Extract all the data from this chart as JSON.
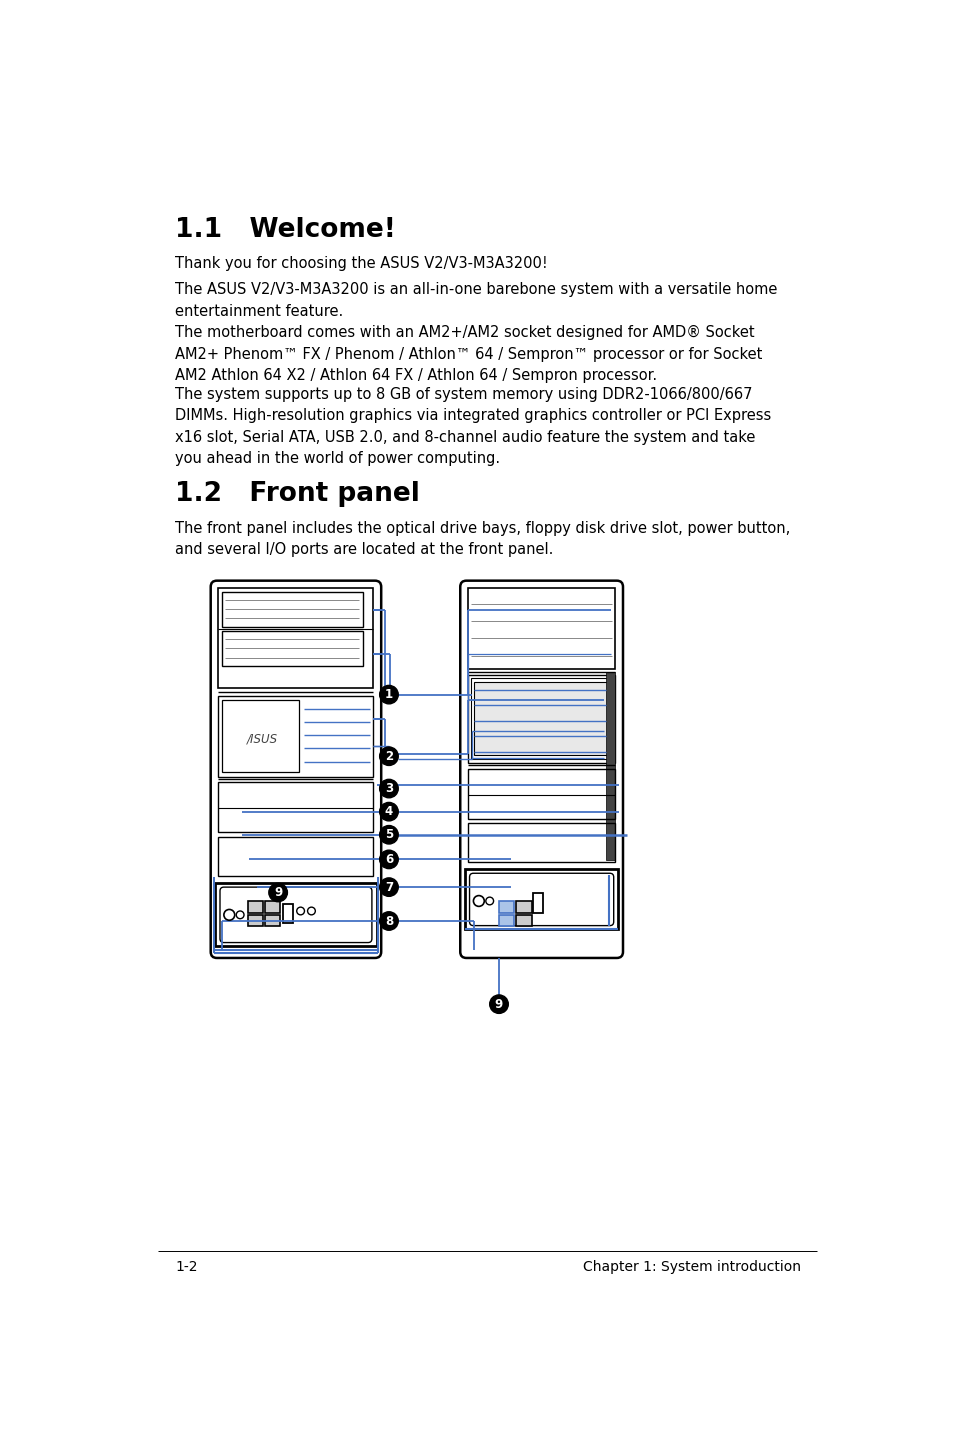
{
  "bg_color": "#ffffff",
  "section1_title": "1.1   Welcome!",
  "section1_para1": "Thank you for choosing the ASUS V2/V3-M3A3200!",
  "section1_para2": "The ASUS V2/V3-M3A3200 is an all-in-one barebone system with a versatile home\nentertainment feature.",
  "section1_para3": "The motherboard comes with an AM2+/AM2 socket designed for AMD® Socket\nAM2+ Phenom™ FX / Phenom / Athlon™ 64 / Sempron™ processor or for Socket\nAM2 Athlon 64 X2 / Athlon 64 FX / Athlon 64 / Sempron processor.",
  "section1_para4": "The system supports up to 8 GB of system memory using DDR2-1066/800/667\nDIMMs. High-resolution graphics via integrated graphics controller or PCI Express\nx16 slot, Serial ATA, USB 2.0, and 8-channel audio feature the system and take\nyou ahead in the world of power computing.",
  "section2_title": "1.2   Front panel",
  "section2_para1": "The front panel includes the optical drive bays, floppy disk drive slot, power button,\nand several I/O ports are located at the front panel.",
  "footer_left": "1-2",
  "footer_right": "Chapter 1: System introduction",
  "blue": "#4472c4",
  "black": "#000000",
  "gray": "#888888",
  "lightgray": "#cccccc",
  "darkgray": "#444444"
}
